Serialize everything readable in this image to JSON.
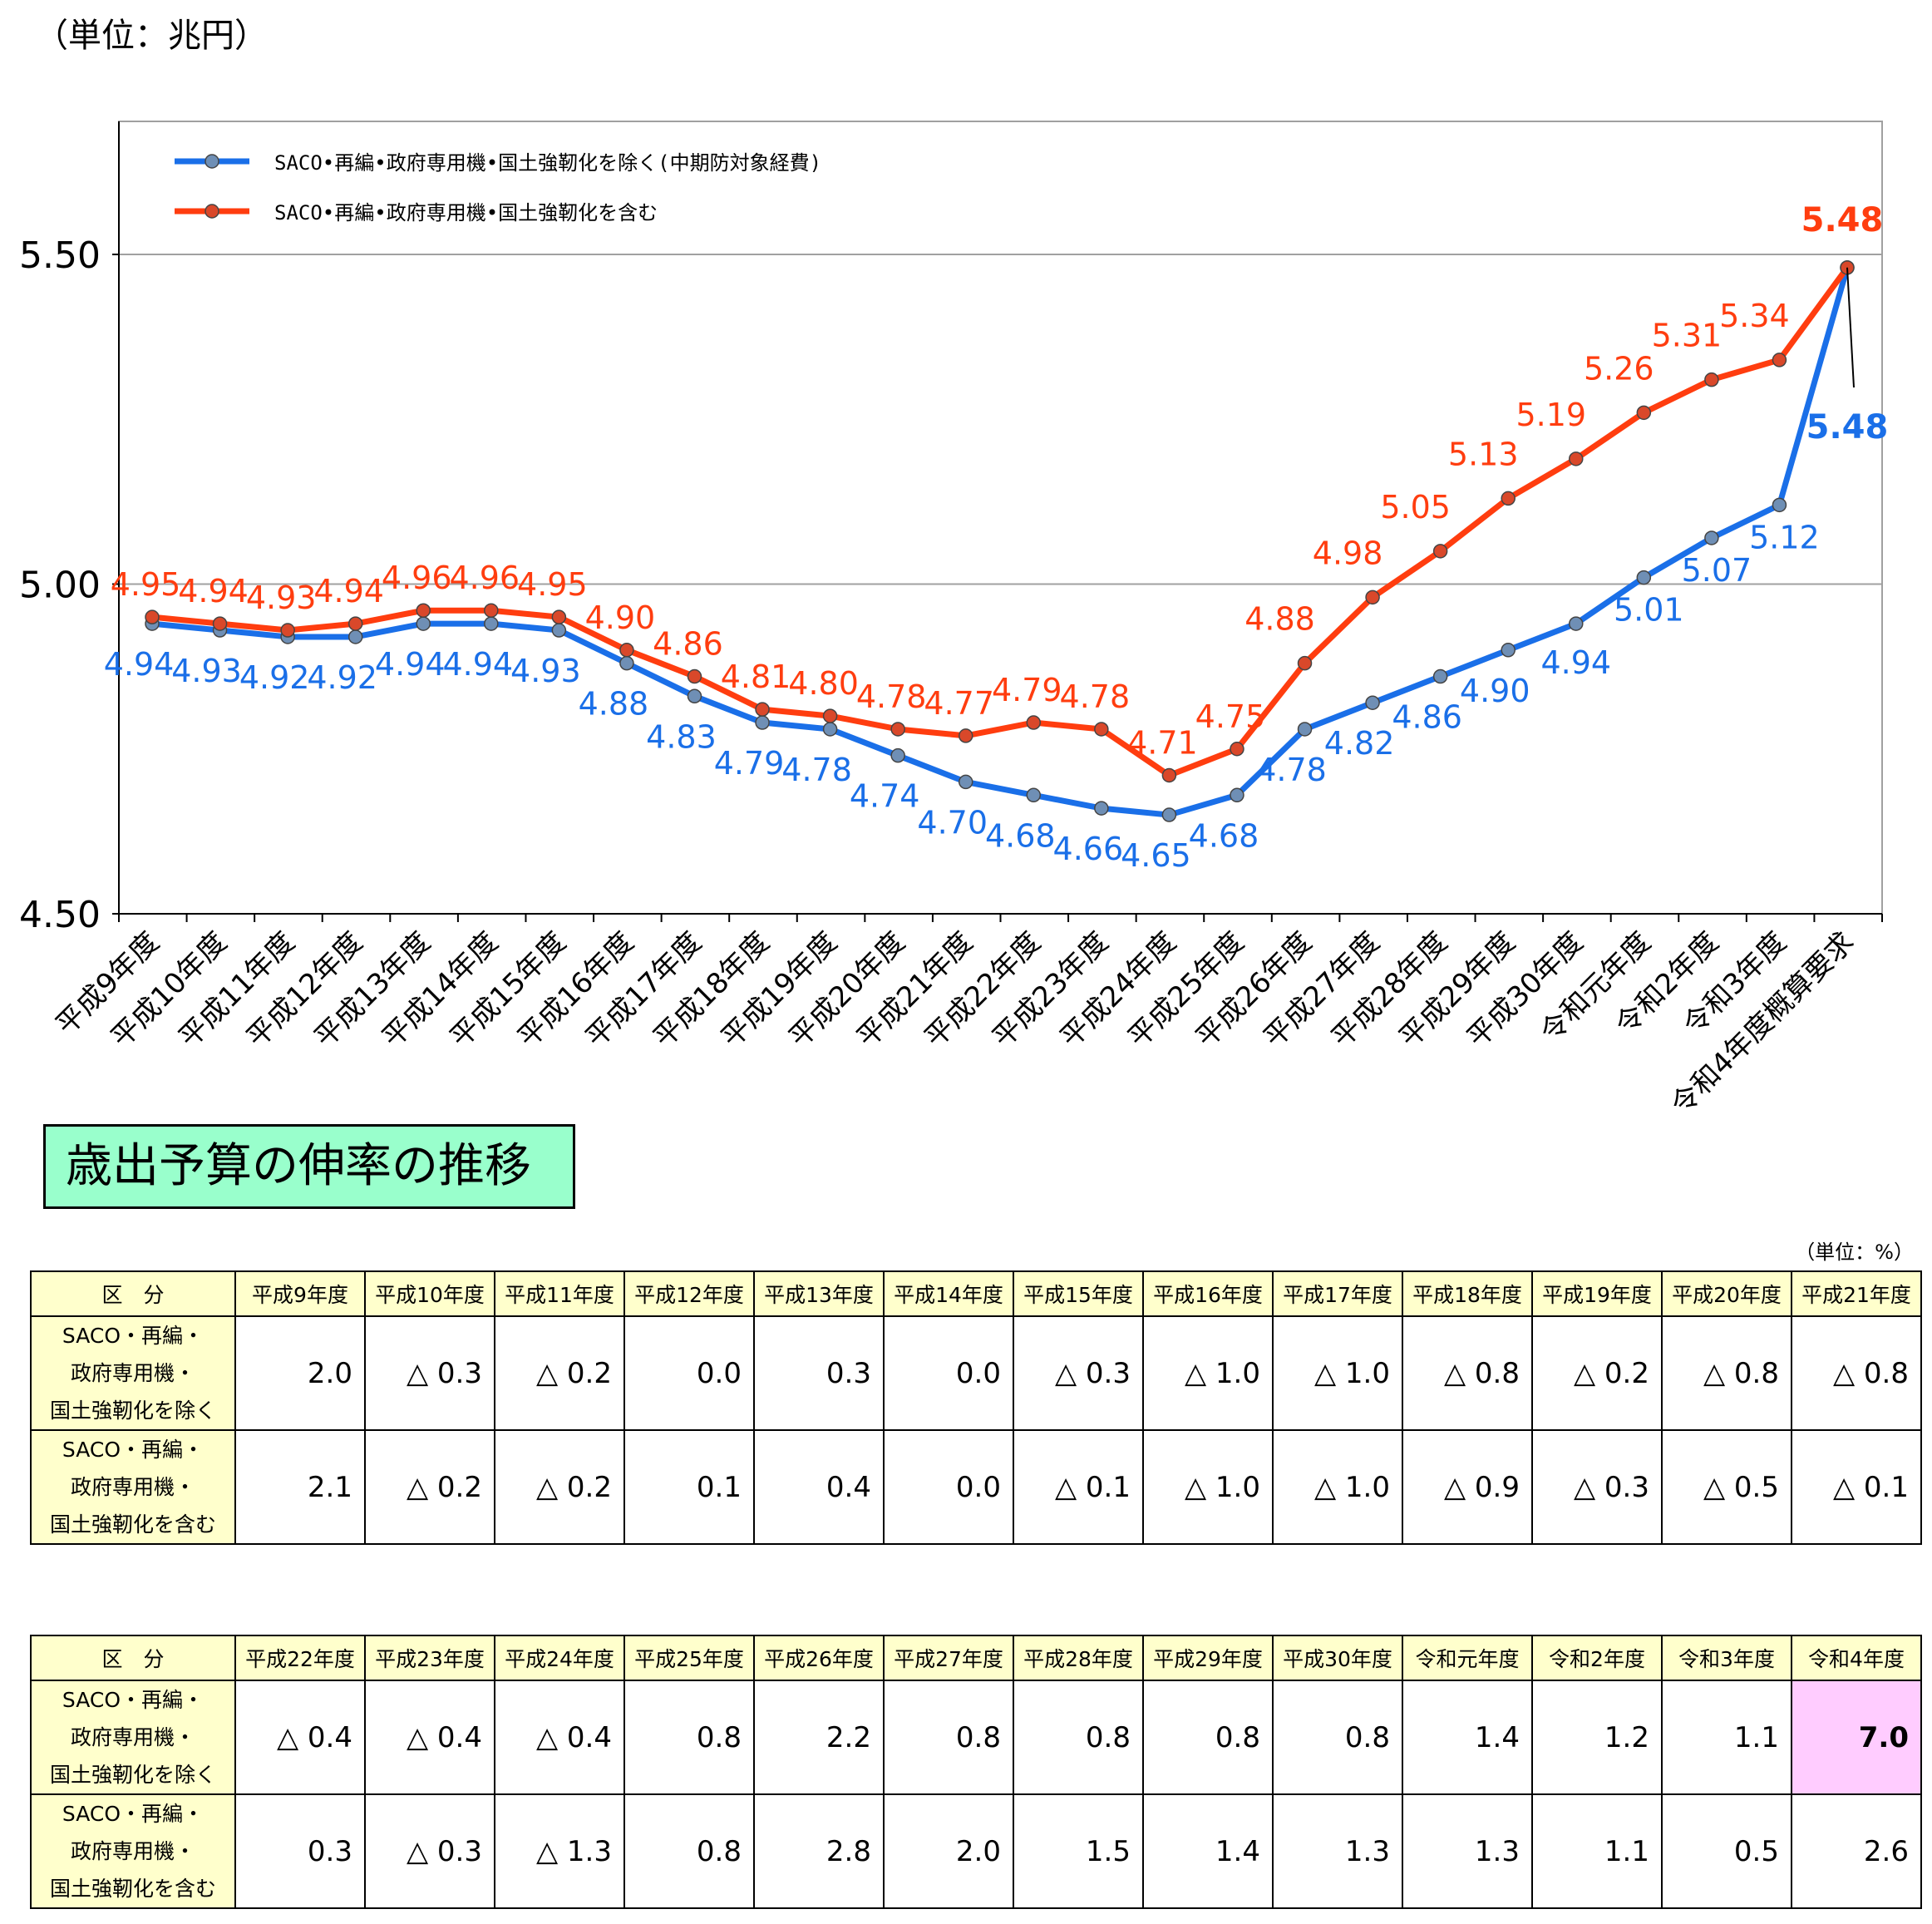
{
  "unit_top": "（単位：兆円）",
  "chart_data": {
    "type": "line",
    "categories": [
      "平成9年度",
      "平成10年度",
      "平成11年度",
      "平成12年度",
      "平成13年度",
      "平成14年度",
      "平成15年度",
      "平成16年度",
      "平成17年度",
      "平成18年度",
      "平成19年度",
      "平成20年度",
      "平成21年度",
      "平成22年度",
      "平成23年度",
      "平成24年度",
      "平成25年度",
      "平成26年度",
      "平成27年度",
      "平成28年度",
      "平成29年度",
      "平成30年度",
      "令和元年度",
      "令和2年度",
      "令和3年度",
      "令和4年度概算要求"
    ],
    "ylim": [
      4.5,
      5.7
    ],
    "yticks": [
      "4.50",
      "5.00",
      "5.50"
    ],
    "grid": true,
    "legend_position": "top-left",
    "series": [
      {
        "name": "SACO•再編•政府専用機•国土強靭化を除く(中期防対象経費)",
        "color": "#1a6fe8",
        "values": [
          4.94,
          4.93,
          4.92,
          4.92,
          4.94,
          4.94,
          4.93,
          4.88,
          4.83,
          4.79,
          4.78,
          4.74,
          4.7,
          4.68,
          4.66,
          4.65,
          4.68,
          4.78,
          4.82,
          4.86,
          4.9,
          4.94,
          5.01,
          5.07,
          5.12,
          5.48
        ],
        "labels": [
          "4.94",
          "4.93",
          "4.92",
          "4.92",
          "4.94",
          "4.94",
          "4.93",
          "4.88",
          "4.83",
          "4.79",
          "4.78",
          "4.74",
          "4.70",
          "4.68",
          "4.66",
          "4.65",
          "4.68",
          "4.78",
          "4.82",
          "4.86",
          "4.90",
          "4.94",
          "5.01",
          "5.07",
          "5.12",
          "5.48"
        ]
      },
      {
        "name": "SACO•再編•政府専用機•国土強靭化を含む",
        "color": "#ff3d0f",
        "values": [
          4.95,
          4.94,
          4.93,
          4.94,
          4.96,
          4.96,
          4.95,
          4.9,
          4.86,
          4.81,
          4.8,
          4.78,
          4.77,
          4.79,
          4.78,
          4.71,
          4.75,
          4.88,
          4.98,
          5.05,
          5.13,
          5.19,
          5.26,
          5.31,
          5.34,
          5.48
        ],
        "labels": [
          "4.95",
          "4.94",
          "4.93",
          "4.94",
          "4.96",
          "4.96",
          "4.95",
          "4.90",
          "4.86",
          "4.81",
          "4.80",
          "4.78",
          "4.77",
          "4.79",
          "4.78",
          "4.71",
          "4.75",
          "4.88",
          "4.98",
          "5.05",
          "5.13",
          "5.19",
          "5.26",
          "5.31",
          "5.34",
          "5.48"
        ]
      }
    ]
  },
  "section_title": "歳出予算の伸率の推移",
  "unit_table": "（単位：%）",
  "table1": {
    "header": "区　分",
    "years": [
      "平成9年度",
      "平成10年度",
      "平成11年度",
      "平成12年度",
      "平成13年度",
      "平成14年度",
      "平成15年度",
      "平成16年度",
      "平成17年度",
      "平成18年度",
      "平成19年度",
      "平成20年度",
      "平成21年度"
    ],
    "rows": [
      {
        "label": [
          "SACO・再編・",
          "政府専用機・",
          "国土強靭化を除く"
        ],
        "values": [
          "2.0",
          "△ 0.3",
          "△ 0.2",
          "0.0",
          "0.3",
          "0.0",
          "△ 0.3",
          "△ 1.0",
          "△ 1.0",
          "△ 0.8",
          "△ 0.2",
          "△ 0.8",
          "△ 0.8"
        ]
      },
      {
        "label": [
          "SACO・再編・",
          "政府専用機・",
          "国土強靭化を含む"
        ],
        "values": [
          "2.1",
          "△ 0.2",
          "△ 0.2",
          "0.1",
          "0.4",
          "0.0",
          "△ 0.1",
          "△ 1.0",
          "△ 1.0",
          "△ 0.9",
          "△ 0.3",
          "△ 0.5",
          "△ 0.1"
        ]
      }
    ]
  },
  "table2": {
    "header": "区　分",
    "years": [
      "平成22年度",
      "平成23年度",
      "平成24年度",
      "平成25年度",
      "平成26年度",
      "平成27年度",
      "平成28年度",
      "平成29年度",
      "平成30年度",
      "令和元年度",
      "令和2年度",
      "令和3年度",
      "令和4年度"
    ],
    "rows": [
      {
        "label": [
          "SACO・再編・",
          "政府専用機・",
          "国土強靭化を除く"
        ],
        "values": [
          "△ 0.4",
          "△ 0.4",
          "△ 0.4",
          "0.8",
          "2.2",
          "0.8",
          "0.8",
          "0.8",
          "0.8",
          "1.4",
          "1.2",
          "1.1",
          "7.0"
        ]
      },
      {
        "label": [
          "SACO・再編・",
          "政府専用機・",
          "国土強靭化を含む"
        ],
        "values": [
          "0.3",
          "△ 0.3",
          "△ 1.3",
          "0.8",
          "2.8",
          "2.0",
          "1.5",
          "1.4",
          "1.3",
          "1.3",
          "1.1",
          "0.5",
          "2.6"
        ]
      }
    ]
  }
}
